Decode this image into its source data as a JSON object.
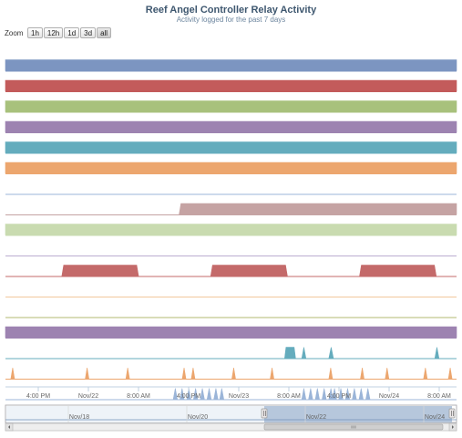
{
  "header": {
    "title": "Reef Angel Controller Relay Activity",
    "subtitle": "Activity logged for the past 7 days"
  },
  "zoom": {
    "label": "Zoom",
    "buttons": [
      "1h",
      "12h",
      "1d",
      "3d",
      "all"
    ],
    "selected": "all"
  },
  "chart_data": {
    "type": "area",
    "x_axis": {
      "ticks": [
        "4:00 PM",
        "Nov/22",
        "8:00 AM",
        "4:00 PM",
        "Nov/23",
        "8:00 AM",
        "4:00 PM",
        "Nov/24",
        "8:00 AM"
      ]
    },
    "navigator": {
      "labels": [
        "Nov/18",
        "Nov/20",
        "Nov/22",
        "Nov/24"
      ]
    },
    "series": [
      {
        "color": "#7c95c1",
        "mode": "solid",
        "on": [
          [
            0,
            1
          ]
        ]
      },
      {
        "color": "#c35b5b",
        "mode": "solid",
        "on": [
          [
            0,
            1
          ]
        ]
      },
      {
        "color": "#a8c17c",
        "mode": "solid",
        "on": [
          [
            0,
            1
          ]
        ]
      },
      {
        "color": "#9d83b1",
        "mode": "solid",
        "on": [
          [
            0,
            1
          ]
        ]
      },
      {
        "color": "#64acbd",
        "mode": "solid",
        "on": [
          [
            0,
            1
          ]
        ]
      },
      {
        "color": "#eca66e",
        "mode": "solid",
        "on": [
          [
            0,
            1
          ]
        ]
      },
      {
        "color": "#9bb5d8",
        "mode": "solid",
        "on": []
      },
      {
        "color": "#c5a3a3",
        "mode": "solid",
        "on": [
          [
            0.385,
            1
          ]
        ]
      },
      {
        "color": "#c9dbb0",
        "mode": "solid",
        "on": [
          [
            0,
            1
          ]
        ]
      },
      {
        "color": "#bcaed0",
        "mode": "solid",
        "on": []
      },
      {
        "color": "#c46a6a",
        "mode": "solid",
        "on": [
          [
            0.125,
            0.295
          ],
          [
            0.455,
            0.625
          ],
          [
            0.785,
            0.955
          ]
        ]
      },
      {
        "color": "#f2c79c",
        "mode": "solid",
        "on": []
      },
      {
        "color": "#b3b872",
        "mode": "solid",
        "on": []
      },
      {
        "color": "#9d83b1",
        "mode": "solid",
        "on": [
          [
            0,
            1
          ]
        ]
      },
      {
        "color": "#64acbd",
        "mode": "spikes",
        "on": [
          [
            0.622,
            0.64
          ],
          [
            0.66,
            0.663
          ],
          [
            0.72,
            0.724
          ],
          [
            0.955,
            0.958
          ]
        ]
      },
      {
        "color": "#eca66e",
        "mode": "spikes",
        "on": [
          [
            0.015,
            0.017
          ],
          [
            0.18,
            0.182
          ],
          [
            0.27,
            0.272
          ],
          [
            0.395,
            0.397
          ],
          [
            0.415,
            0.417
          ],
          [
            0.505,
            0.507
          ],
          [
            0.59,
            0.592
          ],
          [
            0.72,
            0.722
          ],
          [
            0.79,
            0.792
          ],
          [
            0.845,
            0.847
          ],
          [
            0.93,
            0.932
          ],
          [
            0.985,
            0.987
          ]
        ]
      },
      {
        "color": "#9bb5d8",
        "mode": "spikes",
        "on": [
          [
            0.375,
            0.378
          ],
          [
            0.39,
            0.393
          ],
          [
            0.405,
            0.408
          ],
          [
            0.42,
            0.423
          ],
          [
            0.435,
            0.438
          ],
          [
            0.45,
            0.453
          ],
          [
            0.465,
            0.468
          ],
          [
            0.478,
            0.481
          ],
          [
            0.66,
            0.663
          ],
          [
            0.675,
            0.678
          ],
          [
            0.69,
            0.693
          ],
          [
            0.705,
            0.708
          ],
          [
            0.72,
            0.723
          ],
          [
            0.728,
            0.731
          ],
          [
            0.742,
            0.745
          ],
          [
            0.757,
            0.76
          ],
          [
            0.772,
            0.775
          ],
          [
            0.787,
            0.79
          ],
          [
            0.802,
            0.805
          ]
        ]
      }
    ]
  }
}
